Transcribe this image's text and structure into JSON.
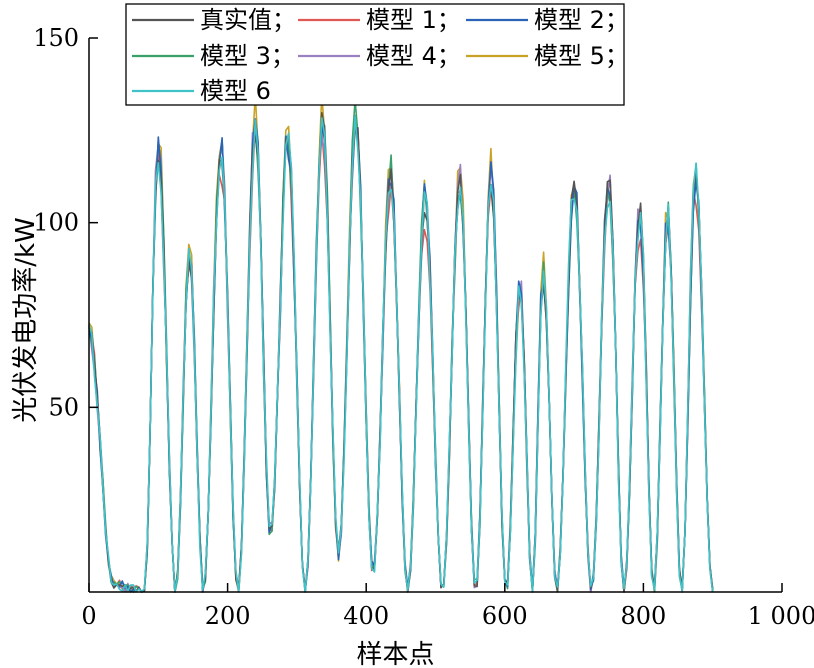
{
  "chart_data": {
    "type": "line",
    "xlabel": "样本点",
    "ylabel": "光伏发电功率/kW",
    "xlim": [
      0,
      1000
    ],
    "ylim": [
      0,
      150
    ],
    "x_ticks": [
      0,
      200,
      400,
      600,
      800,
      1000
    ],
    "x_tick_labels": [
      "0",
      "200",
      "400",
      "600",
      "800",
      "1 000"
    ],
    "y_ticks": [
      50,
      100,
      150
    ],
    "y_tick_labels": [
      "50",
      "100",
      "150"
    ],
    "legend_placement": "top-left",
    "grid": false,
    "sample_step": 4,
    "sample_count": 226,
    "series": [
      {
        "name": "真实值；",
        "color": "#555555",
        "peaks": [
          {
            "x": 100,
            "y": 120
          },
          {
            "x": 145,
            "y": 92
          },
          {
            "x": 190,
            "y": 120
          },
          {
            "x": 240,
            "y": 126
          },
          {
            "x": 287,
            "y": 123
          },
          {
            "x": 337,
            "y": 128
          },
          {
            "x": 385,
            "y": 128
          },
          {
            "x": 435,
            "y": 113
          },
          {
            "x": 485,
            "y": 106
          },
          {
            "x": 535,
            "y": 112
          },
          {
            "x": 580,
            "y": 113
          },
          {
            "x": 622,
            "y": 83
          },
          {
            "x": 655,
            "y": 87
          },
          {
            "x": 700,
            "y": 111
          },
          {
            "x": 750,
            "y": 111
          },
          {
            "x": 795,
            "y": 103
          },
          {
            "x": 835,
            "y": 103
          },
          {
            "x": 875,
            "y": 113
          }
        ],
        "minima": [
          {
            "x": 0,
            "y": 70
          },
          {
            "x": 35,
            "y": 2
          },
          {
            "x": 80,
            "y": 0
          },
          {
            "x": 125,
            "y": 0
          },
          {
            "x": 165,
            "y": 0
          },
          {
            "x": 215,
            "y": 0
          },
          {
            "x": 262,
            "y": 15
          },
          {
            "x": 312,
            "y": 0
          },
          {
            "x": 360,
            "y": 10
          },
          {
            "x": 410,
            "y": 5
          },
          {
            "x": 460,
            "y": 0
          },
          {
            "x": 510,
            "y": 0
          },
          {
            "x": 558,
            "y": 0
          },
          {
            "x": 602,
            "y": 0
          },
          {
            "x": 640,
            "y": 0
          },
          {
            "x": 675,
            "y": 0
          },
          {
            "x": 725,
            "y": 0
          },
          {
            "x": 772,
            "y": 0
          },
          {
            "x": 815,
            "y": 0
          },
          {
            "x": 855,
            "y": 0
          },
          {
            "x": 900,
            "y": 0
          }
        ]
      },
      {
        "name": "模型 1；",
        "color": "#e05a55",
        "peak_scale": 0.94
      },
      {
        "name": "模型 2；",
        "color": "#2a63b8",
        "peak_scale": 1.0
      },
      {
        "name": "模型 3；",
        "color": "#3aa06a",
        "peak_scale": 1.01
      },
      {
        "name": "模型 4；",
        "color": "#9a80c0",
        "peak_scale": 1.02
      },
      {
        "name": "模型 5；",
        "color": "#c9a227",
        "peak_scale": 1.05
      },
      {
        "name": "模型 6",
        "color": "#3fc2c8",
        "peak_scale": 0.99
      }
    ]
  }
}
